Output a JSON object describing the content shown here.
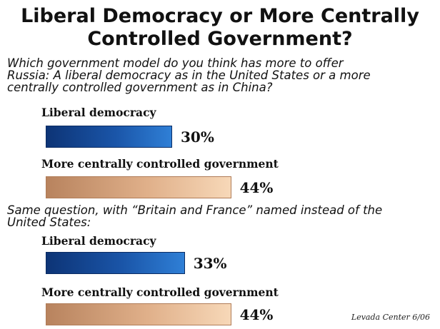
{
  "chart_data": {
    "type": "bar",
    "title_line1": "Liberal Democracy or More Centrally",
    "title_line2": "Controlled Government?",
    "source": "Levada Center 6/06",
    "groups": [
      {
        "question_lines": [
          "Which government model do you think has more to offer",
          "Russia: A liberal democracy as in the United States or a more",
          "centrally controlled government as in China?"
        ],
        "categories": [
          "Liberal democracy",
          "More centrally controlled government"
        ],
        "values": [
          30,
          44
        ],
        "value_labels": [
          "30%",
          "44%"
        ]
      },
      {
        "question_lines": [
          "Same question, with “Britain and France” named instead of the",
          "United States:"
        ],
        "categories": [
          "Liberal democracy",
          "More centrally controlled government"
        ],
        "values": [
          33,
          44
        ],
        "value_labels": [
          "33%",
          "44%"
        ]
      }
    ],
    "colors": {
      "liberal": "#1a55a8",
      "central": "#e0b08a"
    }
  }
}
